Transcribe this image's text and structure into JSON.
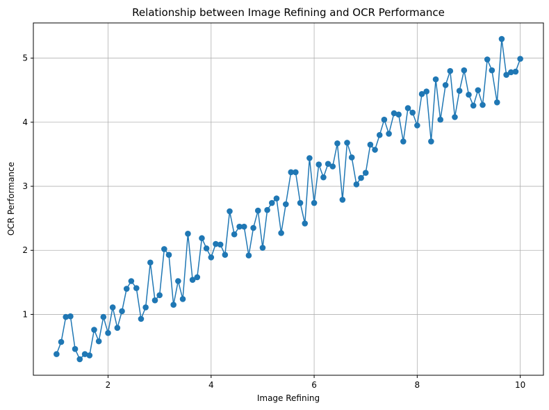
{
  "chart_data": {
    "type": "line",
    "title": "Relationship between Image Refining and OCR Performance",
    "xlabel": "Image Refining",
    "ylabel": "OCR Performance",
    "xlim": [
      0.55,
      10.45
    ],
    "ylim": [
      0.05,
      5.55
    ],
    "xticks": [
      2,
      4,
      6,
      8,
      10
    ],
    "yticks": [
      1,
      2,
      3,
      4,
      5
    ],
    "grid": true,
    "marker": "circle",
    "series": [
      {
        "color": "#1f77b4",
        "x": [
          1.0,
          1.09,
          1.18,
          1.27,
          1.36,
          1.45,
          1.55,
          1.64,
          1.73,
          1.82,
          1.91,
          2.0,
          2.09,
          2.18,
          2.27,
          2.36,
          2.45,
          2.55,
          2.64,
          2.73,
          2.82,
          2.91,
          3.0,
          3.09,
          3.18,
          3.27,
          3.36,
          3.45,
          3.55,
          3.64,
          3.73,
          3.82,
          3.91,
          4.0,
          4.09,
          4.18,
          4.27,
          4.36,
          4.45,
          4.55,
          4.64,
          4.73,
          4.82,
          4.91,
          5.0,
          5.09,
          5.18,
          5.27,
          5.36,
          5.45,
          5.55,
          5.64,
          5.73,
          5.82,
          5.91,
          6.0,
          6.09,
          6.18,
          6.27,
          6.36,
          6.45,
          6.55,
          6.64,
          6.73,
          6.82,
          6.91,
          7.0,
          7.09,
          7.18,
          7.27,
          7.36,
          7.45,
          7.55,
          7.64,
          7.73,
          7.82,
          7.91,
          8.0,
          8.09,
          8.18,
          8.27,
          8.36,
          8.45,
          8.55,
          8.64,
          8.73,
          8.82,
          8.91,
          9.0,
          9.09,
          9.18,
          9.27,
          9.36,
          9.45,
          9.55,
          9.64,
          9.73,
          9.82,
          9.91,
          10.0
        ],
        "y": [
          0.38,
          0.57,
          0.96,
          0.97,
          0.46,
          0.3,
          0.38,
          0.36,
          0.76,
          0.58,
          0.96,
          0.71,
          1.11,
          0.79,
          1.05,
          1.4,
          1.52,
          1.41,
          0.93,
          1.11,
          1.81,
          1.22,
          1.3,
          2.02,
          1.93,
          1.15,
          1.52,
          1.24,
          2.26,
          1.54,
          1.58,
          2.19,
          2.03,
          1.89,
          2.1,
          2.09,
          1.93,
          2.61,
          2.25,
          2.37,
          2.37,
          1.92,
          2.35,
          2.62,
          2.04,
          2.63,
          2.74,
          2.81,
          2.27,
          2.72,
          3.22,
          3.22,
          2.74,
          2.42,
          3.44,
          2.74,
          3.34,
          3.14,
          3.35,
          3.31,
          3.67,
          2.79,
          3.68,
          3.45,
          3.03,
          3.13,
          3.21,
          3.65,
          3.57,
          3.8,
          4.04,
          3.82,
          4.14,
          4.12,
          3.7,
          4.22,
          4.15,
          3.95,
          4.44,
          4.48,
          3.7,
          4.67,
          4.04,
          4.58,
          4.8,
          4.08,
          4.49,
          4.81,
          4.43,
          4.26,
          4.5,
          4.27,
          4.98,
          4.81,
          4.31,
          5.3,
          4.74,
          4.78,
          4.79,
          4.99
        ]
      }
    ]
  }
}
